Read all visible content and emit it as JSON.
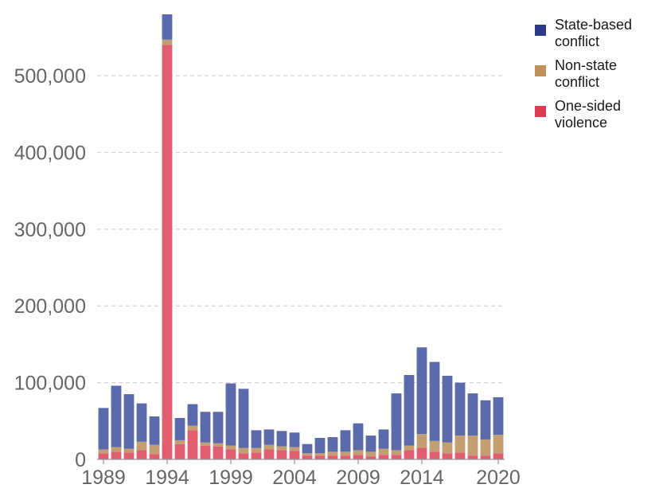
{
  "chart_data": {
    "type": "bar",
    "stacked": true,
    "title": "",
    "xlabel": "",
    "ylabel": "",
    "x": [
      1989,
      1990,
      1991,
      1992,
      1993,
      1994,
      1995,
      1996,
      1997,
      1998,
      1999,
      2000,
      2001,
      2002,
      2003,
      2004,
      2005,
      2006,
      2007,
      2008,
      2009,
      2010,
      2011,
      2012,
      2013,
      2014,
      2015,
      2016,
      2017,
      2018,
      2019,
      2020
    ],
    "ylim": [
      0,
      580000
    ],
    "y_ticks": [
      0,
      100000,
      200000,
      300000,
      400000,
      500000
    ],
    "y_tick_labels": [
      "0",
      "100,000",
      "200,000",
      "300,000",
      "400,000",
      "500,000"
    ],
    "x_tick_labels": [
      "1989",
      "1994",
      "1999",
      "2004",
      "2009",
      "2014",
      "2020"
    ],
    "x_tick_years": [
      1989,
      1994,
      1999,
      2004,
      2009,
      2014,
      2020
    ],
    "grid": true,
    "legend_position": "top-right",
    "series": [
      {
        "name": "One-sided violence",
        "legend_label": [
          "One-sided",
          "violence"
        ],
        "color": "#e05e6f",
        "legend_color": "#dd3c52",
        "values": [
          8000,
          10000,
          9000,
          12000,
          7000,
          540000,
          20000,
          38000,
          18000,
          17000,
          13000,
          8000,
          9000,
          13000,
          12000,
          11000,
          5000,
          5000,
          5000,
          5000,
          6000,
          4000,
          6000,
          6000,
          12000,
          15000,
          10000,
          8000,
          9000,
          5000,
          5000,
          8000
        ]
      },
      {
        "name": "Non-state conflict",
        "legend_label": [
          "Non-state",
          "conflict"
        ],
        "color": "#c49e73",
        "legend_color": "#c0915a",
        "values": [
          5000,
          6000,
          5000,
          11000,
          12000,
          7000,
          5000,
          6000,
          4000,
          4000,
          5000,
          7000,
          6000,
          6000,
          5000,
          5000,
          3000,
          3000,
          5000,
          5000,
          6000,
          6000,
          8000,
          6000,
          6000,
          18000,
          14000,
          14000,
          22000,
          26000,
          21000,
          24000
        ]
      },
      {
        "name": "State-based conflict",
        "legend_label": [
          "State-based",
          "conflict"
        ],
        "color": "#5b6aab",
        "legend_color": "#2b3a8a",
        "values": [
          54000,
          80000,
          71000,
          50000,
          37000,
          33000,
          29000,
          28000,
          40000,
          41000,
          81000,
          77000,
          23000,
          20000,
          20000,
          19000,
          12000,
          20000,
          19000,
          28000,
          35000,
          21000,
          25000,
          74000,
          92000,
          113000,
          103000,
          87000,
          69000,
          55000,
          51000,
          49000
        ]
      }
    ]
  }
}
